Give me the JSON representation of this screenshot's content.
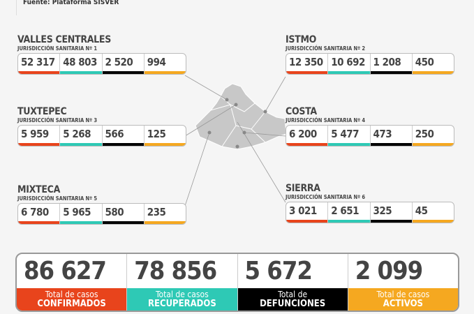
{
  "source": "Fuente: Plataforma SISVER",
  "colors": {
    "confirmados": "#e8441c",
    "recuperados": "#2ec9b5",
    "defunciones": "#000000",
    "activos": "#f5a820"
  },
  "regions": [
    {
      "name": "VALLES CENTRALES",
      "jurisdiction": "JURISDICCIÓN SANITARIA Nº 1",
      "values": [
        "52 317",
        "48 803",
        "2 520",
        "994"
      ]
    },
    {
      "name": "ISTMO",
      "jurisdiction": "JURISDICCIÓN SANITARIA Nº 2",
      "values": [
        "12 350",
        "10 692",
        "1 208",
        "450"
      ]
    },
    {
      "name": "TUXTEPEC",
      "jurisdiction": "JURISDICCIÓN SANITARIA Nº 3",
      "values": [
        "5 959",
        "5 268",
        "566",
        "125"
      ]
    },
    {
      "name": "COSTA",
      "jurisdiction": "JURISDICCIÓN SANITARIA Nº 4",
      "values": [
        "6 200",
        "5 477",
        "473",
        "250"
      ]
    },
    {
      "name": "MIXTECA",
      "jurisdiction": "JURISDICCIÓN SANITARIA Nº 5",
      "values": [
        "6 780",
        "5 965",
        "580",
        "235"
      ]
    },
    {
      "name": "SIERRA",
      "jurisdiction": "JURISDICCIÓN SANITARIA Nº 6",
      "values": [
        "3 021",
        "2 651",
        "325",
        "45"
      ]
    }
  ],
  "totals": [
    {
      "value": "86 627",
      "line1": "Total de casos",
      "line2": "CONFIRMADOS"
    },
    {
      "value": "78 856",
      "line1": "Total de casos",
      "line2": "RECUPERADOS"
    },
    {
      "value": "5 672",
      "line1": "Total de",
      "line2": "DEFUNCIONES"
    },
    {
      "value": "2 099",
      "line1": "Total de casos",
      "line2": "ACTIVOS"
    }
  ]
}
